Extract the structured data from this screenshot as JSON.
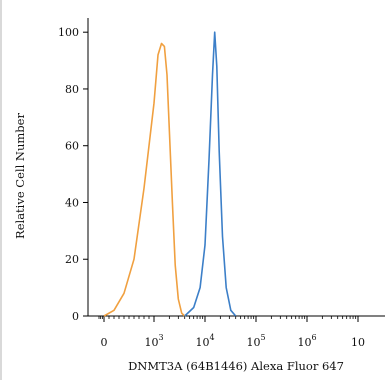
{
  "chart_data": {
    "type": "line",
    "title": "",
    "xlabel": "DNMT3A (64B1446) Alexa Fluor 647",
    "ylabel": "Relative Cell Number",
    "x_scale": "log",
    "xlim": [
      -300,
      10000000
    ],
    "ylim": [
      0,
      105
    ],
    "x_ticks": [
      {
        "value": 0,
        "base": "0",
        "exp": ""
      },
      {
        "value": 1000,
        "base": "10",
        "exp": "3"
      },
      {
        "value": 10000,
        "base": "10",
        "exp": "4"
      },
      {
        "value": 100000,
        "base": "10",
        "exp": "5"
      },
      {
        "value": 1000000,
        "base": "10",
        "exp": "6"
      },
      {
        "value": 10000000,
        "base": "10",
        "exp": ""
      }
    ],
    "y_ticks": [
      0,
      20,
      40,
      60,
      80,
      100
    ],
    "grid": false,
    "series": [
      {
        "color": "#f0a040",
        "x": [
          0,
          200,
          400,
          600,
          800,
          1000,
          1200,
          1400,
          1600,
          1800,
          2000,
          2300,
          2600,
          3000,
          3500,
          4000
        ],
        "y": [
          0,
          2,
          8,
          20,
          45,
          75,
          92,
          96,
          95,
          85,
          65,
          40,
          18,
          6,
          1,
          0
        ]
      },
      {
        "color": "#3c7fc8",
        "x": [
          4000,
          6000,
          8000,
          10000,
          12000,
          14000,
          15500,
          17000,
          19000,
          22000,
          26000,
          32000,
          40000
        ],
        "y": [
          0,
          3,
          10,
          25,
          55,
          85,
          100,
          88,
          58,
          28,
          10,
          2,
          0
        ]
      }
    ]
  }
}
